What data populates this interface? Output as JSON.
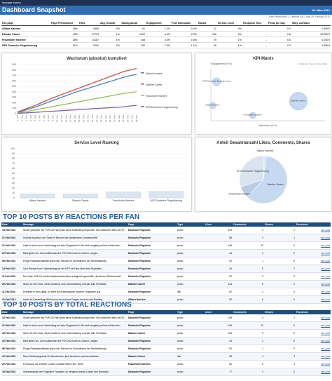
{
  "header": {
    "brand": "fanpage karma",
    "title": "Dashboard Snapshot",
    "date": "28. März 2013",
    "period": "Time Period from 1. Februar 2013 until 28. Februar 2013"
  },
  "summary": {
    "columns": [
      "Fan page",
      "Page Performance",
      "Fans",
      "Avg. Growth",
      "Talking about",
      "Engagement",
      "Post Interaction",
      "Karma",
      "Service Level",
      "Response Time",
      "Posts per Day",
      "Wkly. Ad-Value"
    ],
    "rows": [
      [
        "Allianz Karriere",
        "18%",
        "4406",
        "0%",
        "61",
        "1.4%",
        "0.2%",
        "12",
        "0%",
        "-",
        "0.4",
        "2.400 €"
      ],
      [
        "Daimler Career",
        "43%",
        "27719",
        "1%",
        "1222",
        "4.4%",
        "0.3%",
        "108",
        "0%",
        "-",
        "0.6",
        "12.000 €"
      ],
      [
        "Fraunhofer Karriere",
        "26%",
        "13187",
        "1%",
        "448",
        "3.4%",
        "0.3%",
        "29",
        "1%",
        "-",
        "0.5",
        "4.200 €"
      ],
      [
        "DFS Deutsche Flugsicherung",
        "31%",
        "3204",
        "2%",
        "252",
        "7.9%",
        "1.1%",
        "36",
        "1%",
        "-",
        "0.3",
        "1.800 €"
      ]
    ]
  },
  "chart_data": [
    {
      "type": "line",
      "title": "Wachstum (absolut) kumuliert",
      "categories": [
        "1. Feb",
        "2. Feb",
        "3. Feb",
        "4. Feb",
        "5. Feb",
        "6. Feb",
        "7. Feb",
        "8. Feb",
        "9. Feb",
        "10. Feb",
        "11. Feb",
        "12. Feb",
        "13. Feb",
        "14. Feb",
        "15. Feb",
        "16. Feb",
        "17. Feb",
        "18. Feb",
        "19. Feb",
        "20. Feb",
        "21. Feb",
        "22. Feb",
        "23. Feb",
        "24. Feb",
        "25. Feb",
        "26. Feb",
        "27. Feb",
        "28. Feb"
      ],
      "ylim": [
        0,
        900
      ],
      "yticks": [
        0,
        100,
        200,
        300,
        400,
        500,
        600,
        700,
        800,
        900
      ],
      "grid": true,
      "series": [
        {
          "name": "Allianz Karriere",
          "color": "#4f81bd",
          "values": [
            20,
            45,
            70,
            95,
            120,
            150,
            180,
            210,
            240,
            270,
            300,
            330,
            360,
            390,
            415,
            440,
            465,
            490,
            515,
            540,
            565,
            590,
            615,
            640,
            665,
            685,
            705,
            720
          ]
        },
        {
          "name": "Daimler Career",
          "color": "#c0504d",
          "values": [
            30,
            60,
            90,
            120,
            150,
            185,
            220,
            255,
            290,
            320,
            350,
            380,
            410,
            440,
            470,
            500,
            530,
            560,
            590,
            620,
            650,
            680,
            710,
            740,
            770,
            790,
            810,
            830
          ]
        },
        {
          "name": "Fraunhofer Karriere",
          "color": "#9bbb59",
          "values": [
            10,
            25,
            40,
            55,
            70,
            85,
            100,
            115,
            130,
            145,
            160,
            175,
            190,
            205,
            220,
            235,
            250,
            265,
            280,
            295,
            310,
            325,
            340,
            355,
            370,
            380,
            390,
            400
          ]
        },
        {
          "name": "DFS Deutsche Flugsicherung",
          "color": "#8064a2",
          "values": [
            5,
            10,
            15,
            20,
            25,
            30,
            35,
            40,
            45,
            50,
            55,
            60,
            65,
            70,
            75,
            80,
            85,
            90,
            95,
            100,
            105,
            110,
            115,
            120,
            125,
            135,
            145,
            150
          ]
        }
      ]
    },
    {
      "type": "bubble",
      "title": "KPI Matrix",
      "note": "Größe der Kreise: Karma Wert",
      "x_label": "Wachstum (in %)",
      "y_label": "Engagement (in %)",
      "xlim": [
        0,
        6
      ],
      "ylim": [
        0,
        1.2
      ],
      "color": "#c5d9f1",
      "series": [
        {
          "name": "DFS Deutsche Flugsicherung",
          "x": [
            0.3
          ],
          "values": [
            0.9
          ],
          "sizes": [
            8
          ]
        },
        {
          "name": "Allianz Karriere",
          "x": [
            0.1
          ],
          "values": [
            0.35
          ],
          "sizes": [
            5
          ]
        },
        {
          "name": "Fraunhofer Karriere",
          "x": [
            2.2
          ],
          "values": [
            0.12
          ],
          "sizes": [
            5
          ]
        },
        {
          "name": "Daimler Career",
          "x": [
            4.6
          ],
          "values": [
            0.45
          ],
          "sizes": [
            40
          ]
        }
      ]
    },
    {
      "type": "bar",
      "title": "Service Level Ranking",
      "categories": [
        "Allianz Karriere",
        "Daimler Career",
        "Fraunhofer Karriere",
        "DFS Deutsche Flugsicherung"
      ],
      "values": [
        8,
        8,
        12,
        13
      ],
      "color": "#dbe5f1",
      "ylim": [
        0,
        100
      ],
      "yticks": [
        0,
        10,
        20,
        30,
        40,
        50,
        60,
        70,
        80,
        90,
        100
      ],
      "grid": true
    },
    {
      "type": "pie",
      "title": "Anteil Gesamtanzahl Likes, Comments, Shares",
      "categories": [
        "Allianz Karriere",
        "Daimler Career",
        "Fraunhofer Karriere",
        "DFS Deutsche Flugsicherung"
      ],
      "values": [
        2,
        60,
        8,
        30
      ],
      "colors": [
        "#dce6f2",
        "#c5d9f1",
        "#b8cce4",
        "#d9e4f0"
      ]
    }
  ],
  "posts_by_fan": {
    "title": "TOP 10 POSTS BY REACTIONS PER FAN",
    "columns": [
      "Date",
      "Message",
      "Page",
      "Type",
      "Likes",
      "Comments",
      "Shares",
      "Facebook"
    ],
    "rows": [
      [
        "15.Feb 2013",
        "Sicher gelandet: der FVR 232 hat heute seine Ausbildung begonnen. Wir wünschen allen viel Erfolg!",
        "Deutsche Flugsiche",
        "photo",
        149,
        4,
        2,
        "see post"
      ],
      [
        "21.Feb 2013",
        "Schöne Aussicht vom Tower in Bremen bei strahlendem Sonnenschein",
        "Deutsche Flugsiche",
        "photo",
        88,
        3,
        1,
        "see post"
      ],
      [
        "21.Feb 2013",
        "Habt ihr schon eine Verbindung mit dem Flugverkehr? Wir sind neugierig auf eure Antworten",
        "Deutsche Flugsiche",
        "photo",
        145,
        12,
        0,
        "see post"
      ],
      [
        "22.Feb 2013",
        "Bald geht's los. Zum Auftakt war der FVR 231 heute zu Gast in Langen",
        "Deutsche Flugsiche",
        "photo",
        44,
        2,
        0,
        "see post"
      ],
      [
        "06.Feb 2013",
        "Einige Radarspezialisten ganz nah: Besuch im Kontrollraum der Niederlassung",
        "Deutsche Flugsiche",
        "photo",
        52,
        1,
        0,
        "see post"
      ],
      [
        "14.Feb 2013",
        "Vom Himmel hoch: Valentinstag bei der DFS mit Herz über dem Flughafen",
        "Deutsche Flugsiche",
        "photo",
        40,
        5,
        1,
        "see post"
      ],
      [
        "11.Feb 2013",
        "Der Gate-CDB 13 hat die Akademieabschluss erfolgreich geschafft. Herzlichen Glückwunsch!",
        "Deutsche Flugsiche",
        "photo",
        52,
        3,
        0,
        "see post"
      ],
      [
        "26.Feb 2013",
        "Wow! 10.000 Fans. Vielen Dank für eure Unterstützung und das tolle Feedback",
        "Daimler Career",
        "photo",
        134,
        9,
        2,
        "see post"
      ],
      [
        "11.Feb 2013",
        "Einblicke in den Alltag: So sieht ein Arbeitstag bei unseren Fluglotsen aus",
        "Deutsche Flugsiche",
        "link",
        52,
        2,
        0,
        "see post"
      ],
      [
        "21.Feb 2013",
        "Heute ist Karrieretag! Wir freuen uns auf eure Fragen rund um den Einstieg",
        "Allianz Karriere",
        "photo",
        52,
        6,
        0,
        "see post"
      ]
    ]
  },
  "posts_total": {
    "title": "TOP 10 POSTS BY TOTAL REACTIONS",
    "columns": [
      "Date",
      "Message",
      "Page",
      "Type",
      "Likes",
      "Comments",
      "Shares",
      "Facebook"
    ],
    "rows": [
      [
        "15.Feb 2013",
        "Sicher gelandet: der FVR 232 hat heute seine Ausbildung begonnen. Wir wünschen allen viel Erfolg!",
        "Deutsche Flugsiche",
        "photo",
        149,
        4,
        2,
        "see post"
      ],
      [
        "21.Feb 2013",
        "Habt ihr schon eine Verbindung mit dem Flugverkehr? Wir sind neugierig auf eure Antworten",
        "Deutsche Flugsiche",
        "photo",
        145,
        12,
        0,
        "see post"
      ],
      [
        "26.Feb 2013",
        "Wow! 10.000 Fans. Vielen Dank für eure Unterstützung und das tolle Feedback",
        "Daimler Career",
        "photo",
        134,
        9,
        2,
        "see post"
      ],
      [
        "22.Feb 2013",
        "Bald geht's los. Zum Auftakt war der FVR 231 heute zu Gast in Langen",
        "Deutsche Flugsiche",
        "photo",
        44,
        2,
        0,
        "see post"
      ],
      [
        "06.Feb 2013",
        "Einige Radarspezialisten ganz nah: Besuch im Kontrollraum der Niederlassung",
        "Deutsche Flugsiche",
        "photo",
        52,
        1,
        0,
        "see post"
      ],
      [
        "12.Feb 2013",
        "Neue Stellenangebote für Absolventen: jetzt bewerben und durchstarten",
        "Daimler Career",
        "link",
        96,
        4,
        3,
        "see post"
      ],
      [
        "20.Feb 2013",
        "Forschung live erleben: unsere Institute öffnen ihre Türen",
        "Fraunhofer Karriere",
        "photo",
        81,
        2,
        1,
        "see post"
      ],
      [
        "18.Feb 2013",
        "Verkehrsspitze am Flughafen Frankfurt: so behalten unsere Lotsen den Überblick",
        "Deutsche Flugsiche",
        "photo",
        77,
        3,
        0,
        "see post"
      ]
    ]
  }
}
